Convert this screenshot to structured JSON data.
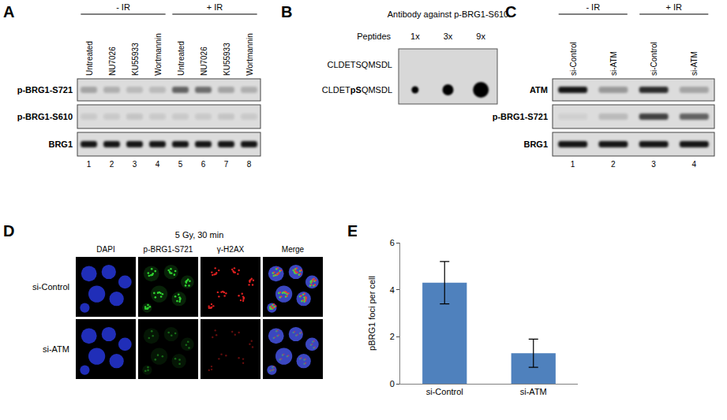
{
  "panels": {
    "A": {
      "letter": "A",
      "lanes": [
        {
          "label": "Untreated",
          "number": 1,
          "group": "- IR"
        },
        {
          "label": "NU7026",
          "number": 2,
          "group": "- IR"
        },
        {
          "label": "KU55933",
          "number": 3,
          "group": "- IR"
        },
        {
          "label": "Wortmannin",
          "number": 4,
          "group": "- IR"
        },
        {
          "label": "Untreated",
          "number": 5,
          "group": "+ IR"
        },
        {
          "label": "NU7026",
          "number": 6,
          "group": "+ IR"
        },
        {
          "label": "KU55933",
          "number": 7,
          "group": "+ IR"
        },
        {
          "label": "Wortmannin",
          "number": 8,
          "group": "+ IR"
        }
      ],
      "rows": [
        {
          "label": "p-BRG1-S721",
          "intensity": [
            0.25,
            0.2,
            0.15,
            0.15,
            0.55,
            0.5,
            0.25,
            0.2
          ]
        },
        {
          "label": "p-BRG1-S610",
          "intensity": [
            0.08,
            0.08,
            0.1,
            0.08,
            0.08,
            0.08,
            0.1,
            0.08
          ]
        },
        {
          "label": "BRG1",
          "intensity": [
            0.9,
            0.9,
            0.9,
            0.9,
            0.9,
            0.9,
            0.9,
            0.9
          ]
        }
      ]
    },
    "B": {
      "letter": "B",
      "title": "Antibody against p-BRG1-S610",
      "axis_label": "Peptides",
      "columns": [
        "1x",
        "3x",
        "9x"
      ],
      "rows": [
        {
          "label": "CLDETSQMSDL",
          "signal": [
            0,
            0,
            0
          ]
        },
        {
          "label": "CLDETpSQMSDL",
          "bold": "pS",
          "signal": [
            0.45,
            0.7,
            1
          ]
        }
      ]
    },
    "C": {
      "letter": "C",
      "lanes": [
        {
          "label": "si-Control",
          "number": 1,
          "group": "- IR"
        },
        {
          "label": "si-ATM",
          "number": 2,
          "group": "- IR"
        },
        {
          "label": "si-Control",
          "number": 3,
          "group": "+ IR"
        },
        {
          "label": "si-ATM",
          "number": 4,
          "group": "+ IR"
        }
      ],
      "rows": [
        {
          "label": "ATM",
          "intensity": [
            0.9,
            0.3,
            0.8,
            0.25
          ]
        },
        {
          "label": "p-BRG1-S721",
          "intensity": [
            0.05,
            0.15,
            0.7,
            0.55
          ]
        },
        {
          "label": "BRG1",
          "intensity": [
            0.9,
            0.9,
            0.9,
            0.9
          ]
        }
      ]
    },
    "D": {
      "letter": "D",
      "title": "5 Gy, 30 min",
      "columns": [
        {
          "label": "DAPI",
          "color": "#2636d8"
        },
        {
          "label": "p-BRG1-S721",
          "color": "#2fd12f"
        },
        {
          "label": "γ-H2AX",
          "color": "#e02020"
        },
        {
          "label": "Merge",
          "color": "#ffffff"
        }
      ],
      "rows": [
        "si-Control",
        "si-ATM"
      ]
    },
    "E": {
      "letter": "E"
    }
  },
  "chart_data": {
    "type": "bar",
    "categories": [
      "si-Control",
      "si-ATM"
    ],
    "values": [
      4.3,
      1.3
    ],
    "error": [
      0.9,
      0.6
    ],
    "color": "#4f81bd",
    "y_label": "pBRG1 foci per cell",
    "ylim": [
      0,
      6
    ],
    "yticks": [
      0,
      2,
      4,
      6
    ],
    "grid": false
  }
}
